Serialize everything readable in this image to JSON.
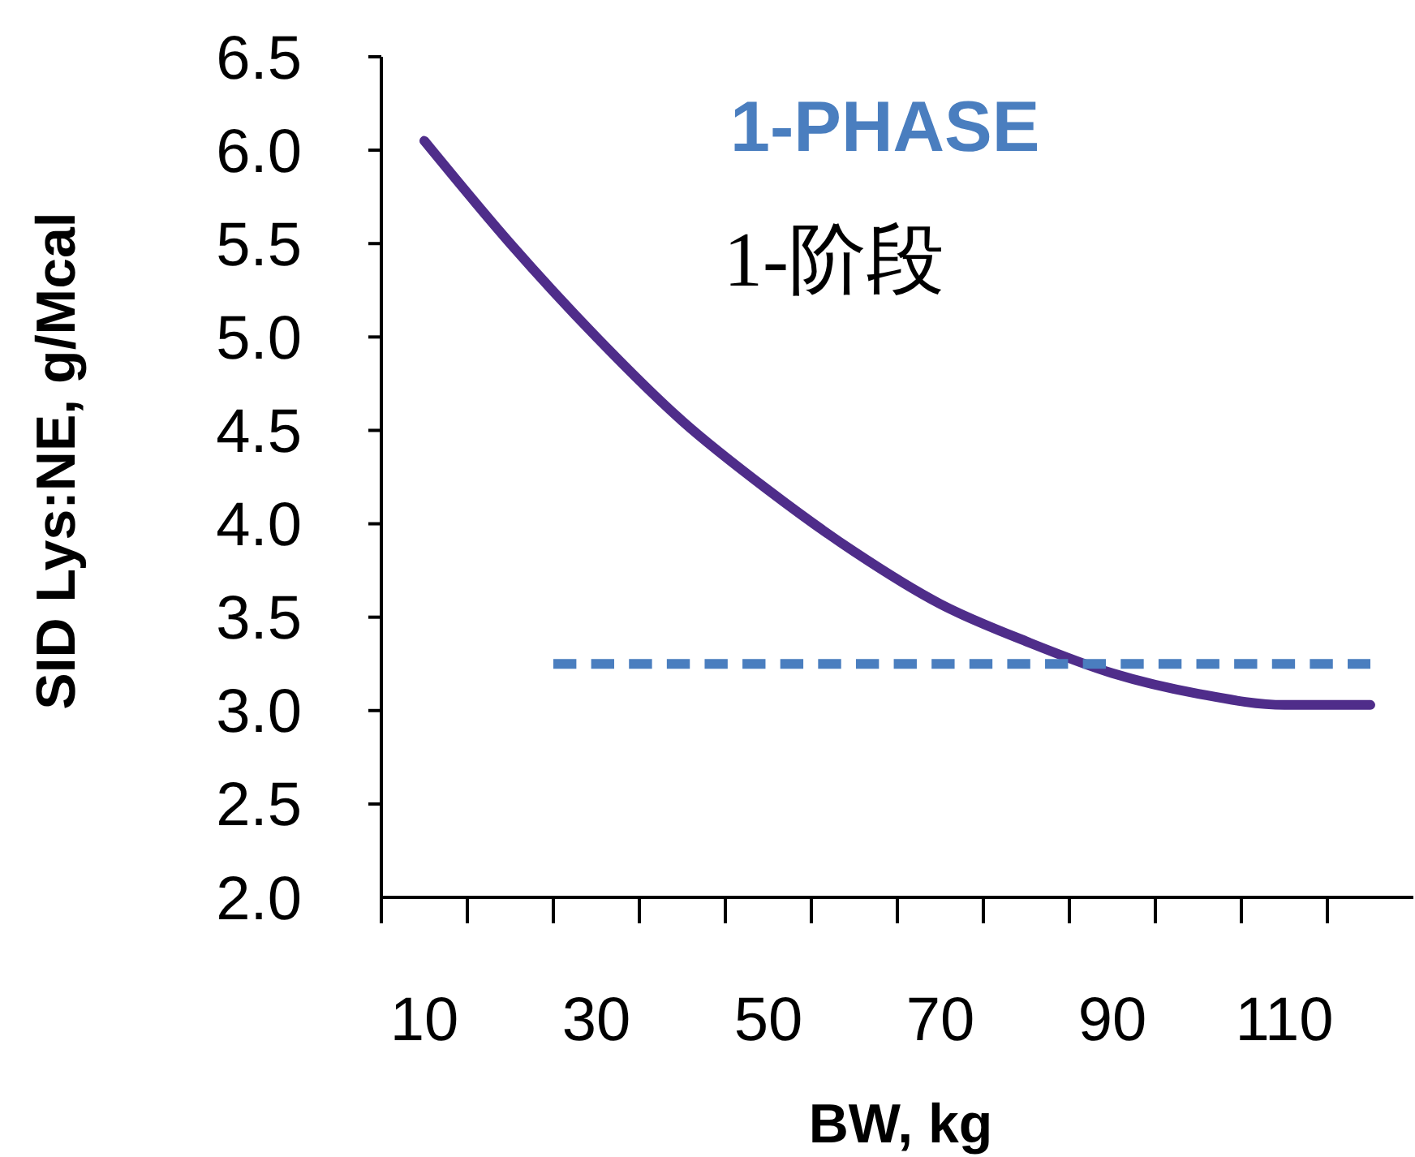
{
  "chart_data": {
    "type": "line",
    "xlabel": "BW, kg",
    "ylabel": "SID Lys:NE, g/Mcal",
    "annotations": [
      "1-阶段"
    ],
    "xlim": [
      5,
      125
    ],
    "xticks": [
      10,
      30,
      50,
      70,
      90,
      110
    ],
    "ylim": [
      2,
      6.5
    ],
    "yticks": [
      {
        "value": 2,
        "label": "2.0"
      },
      {
        "value": 2.5,
        "label": "2.5"
      },
      {
        "value": 3,
        "label": "3.0"
      },
      {
        "value": 3.5,
        "label": "3.5"
      },
      {
        "value": 4,
        "label": "4.0"
      },
      {
        "value": 4.5,
        "label": "4.5"
      },
      {
        "value": 5,
        "label": "5.0"
      },
      {
        "value": 5.5,
        "label": "5.5"
      },
      {
        "value": 6,
        "label": "6.0"
      },
      {
        "value": 6.5,
        "label": "6.5"
      }
    ],
    "grid": false,
    "marker": "none",
    "series": [
      {
        "color": "#4f2d8a",
        "line_style": "solid",
        "x": [
          10,
          20,
          30,
          40,
          50,
          60,
          70,
          80,
          90,
          100,
          110,
          120
        ],
        "values": [
          6.05,
          5.5,
          5.0,
          4.55,
          4.18,
          3.85,
          3.57,
          3.37,
          3.2,
          3.09,
          3.03,
          3.03
        ]
      },
      {
        "name": "1-PHASE",
        "color": "#4a7ebf",
        "line_style": "dashed",
        "x": [
          25,
          120
        ],
        "values": [
          3.25,
          3.25
        ]
      }
    ]
  }
}
